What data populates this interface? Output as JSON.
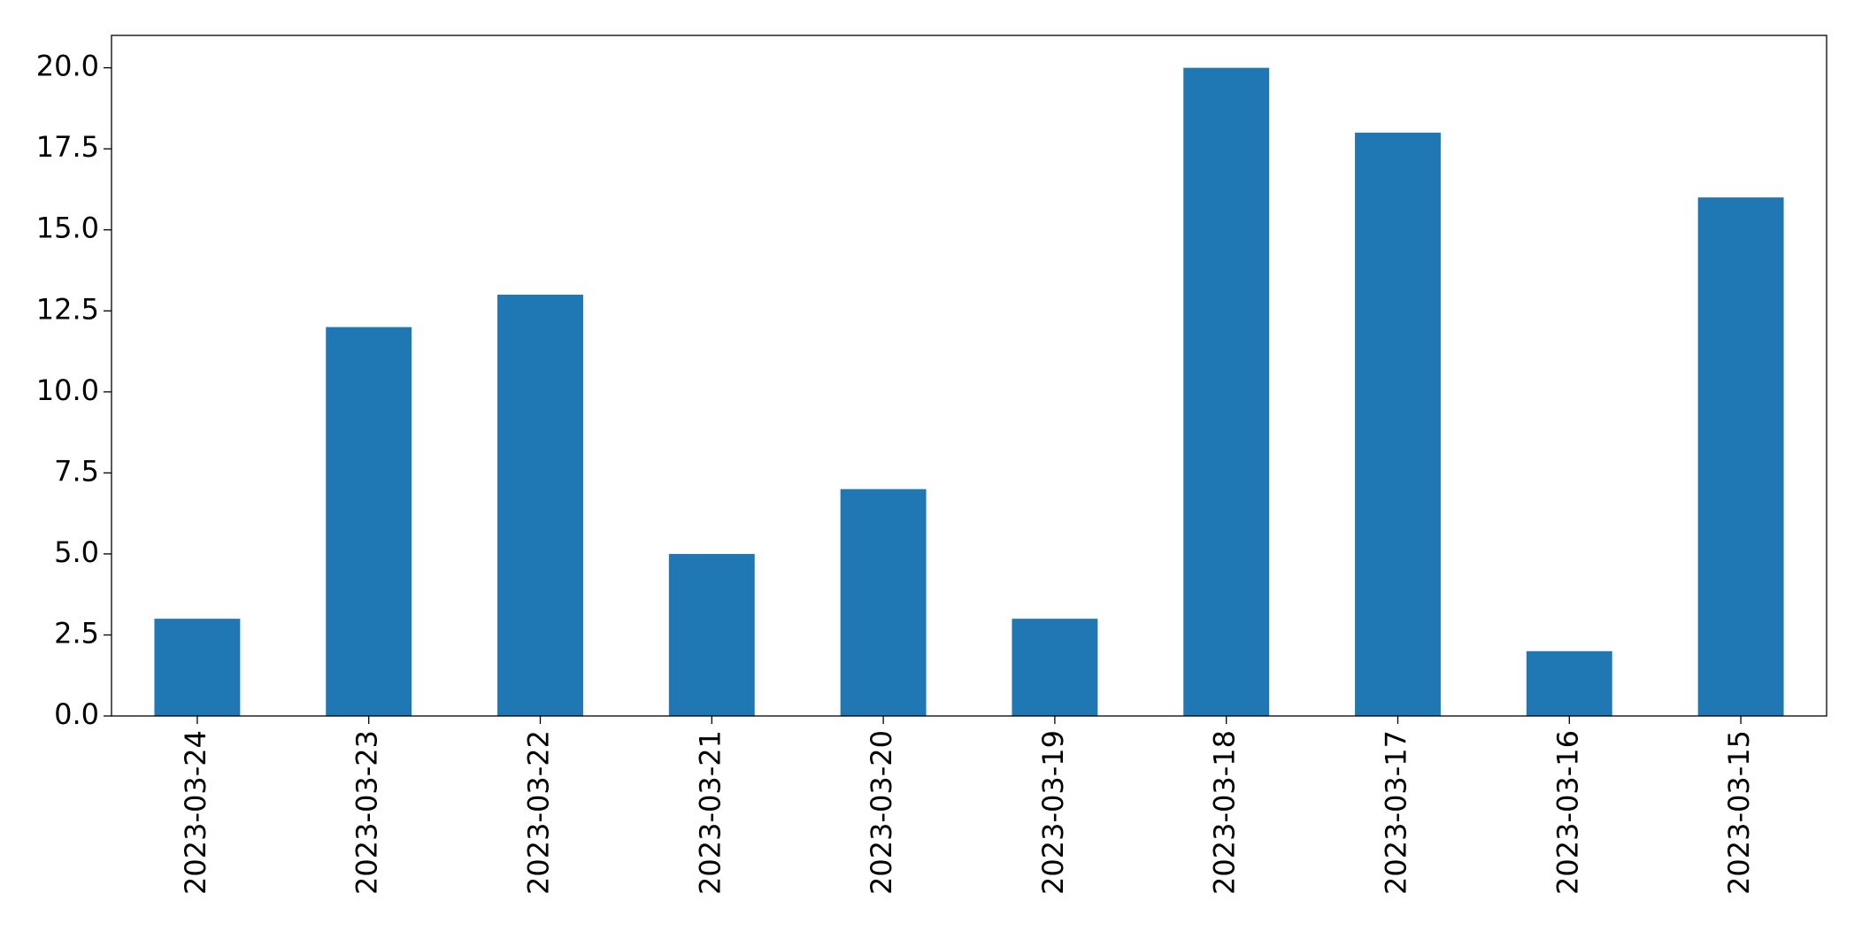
{
  "chart_data": {
    "type": "bar",
    "categories": [
      "2023-03-24",
      "2023-03-23",
      "2023-03-22",
      "2023-03-21",
      "2023-03-20",
      "2023-03-19",
      "2023-03-18",
      "2023-03-17",
      "2023-03-16",
      "2023-03-15"
    ],
    "values": [
      3,
      12,
      13,
      5,
      7,
      3,
      20,
      18,
      2,
      16
    ],
    "color": "#1f77b4",
    "ylim": [
      0,
      21
    ],
    "yticks": [
      {
        "value": 0,
        "label": "0.0"
      },
      2.5,
      {
        "value": 5,
        "label": "5.0"
      },
      7.5,
      {
        "value": 10,
        "label": "10.0"
      },
      12.5,
      {
        "value": 15,
        "label": "15.0"
      },
      17.5,
      {
        "value": 20,
        "label": "20.0"
      }
    ]
  }
}
